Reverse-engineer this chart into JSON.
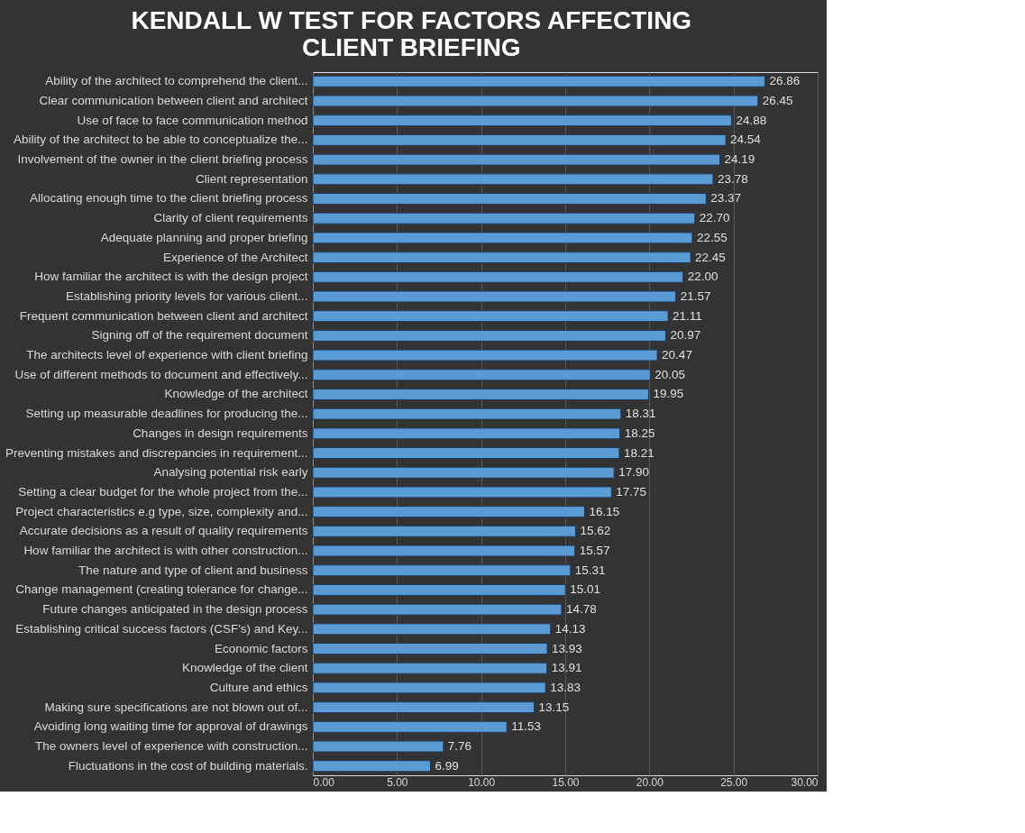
{
  "chart_data": {
    "type": "bar",
    "orientation": "horizontal",
    "title": "KENDALL W TEST FOR FACTORS AFFECTING CLIENT BRIEFING",
    "categories": [
      "Ability of the architect to comprehend the client...",
      "Clear communication between client and architect",
      "Use of face to face communication method",
      "Ability of the architect to be able to conceptualize the...",
      "Involvement of the owner in the client briefing process",
      "Client representation",
      "Allocating enough time to the client briefing process",
      "Clarity of client requirements",
      "Adequate planning and proper briefing",
      "Experience of the Architect",
      "How familiar the architect is with the design project",
      "Establishing priority levels for various client...",
      "Frequent communication between client and architect",
      "Signing off of the requirement document",
      "The architects level of experience with client briefing",
      "Use of different methods to document and effectively...",
      "Knowledge of the architect",
      "Setting up measurable deadlines for producing the...",
      "Changes in design requirements",
      "Preventing mistakes and discrepancies in requirement...",
      "Analysing potential risk early",
      "Setting a clear budget for the whole project from the...",
      "Project characteristics e.g type, size, complexity and...",
      "Accurate decisions as a result of quality requirements",
      "How familiar the architect is with other construction...",
      "The nature and type of client and business",
      "Change management (creating tolerance for change...",
      "Future changes anticipated in the design process",
      "Establishing critical success factors (CSF's) and Key...",
      "Economic factors",
      "Knowledge of the client",
      "Culture and ethics",
      "Making sure specifications are not blown out of...",
      "Avoiding long waiting time for approval of drawings",
      "The owners level of experience with construction...",
      "Fluctuations in the cost of building materials."
    ],
    "values": [
      26.86,
      26.45,
      24.88,
      24.54,
      24.19,
      23.78,
      23.37,
      22.7,
      22.55,
      22.45,
      22.0,
      21.57,
      21.11,
      20.97,
      20.47,
      20.05,
      19.95,
      18.31,
      18.25,
      18.21,
      17.9,
      17.75,
      16.15,
      15.62,
      15.57,
      15.31,
      15.01,
      14.78,
      14.13,
      13.93,
      13.91,
      13.83,
      13.15,
      11.53,
      7.76,
      6.99
    ],
    "value_labels": [
      "26.86",
      "26.45",
      "24.88",
      "24.54",
      "24.19",
      "23.78",
      "23.37",
      "22.70",
      "22.55",
      "22.45",
      "22.00",
      "21.57",
      "21.11",
      "20.97",
      "20.47",
      "20.05",
      "19.95",
      "18.31",
      "18.25",
      "18.21",
      "17.90",
      "17.75",
      "16.15",
      "15.62",
      "15.57",
      "15.31",
      "15.01",
      "14.78",
      "14.13",
      "13.93",
      "13.91",
      "13.83",
      "13.15",
      "11.53",
      "7.76",
      "6.99"
    ],
    "color": "#5b9bd5",
    "xlim": [
      0,
      30
    ],
    "xticks": [
      {
        "value": 0,
        "label": "0.00"
      },
      {
        "value": 5,
        "label": "5.00"
      },
      {
        "value": 10,
        "label": "10.00"
      },
      {
        "value": 15,
        "label": "15.00"
      },
      {
        "value": 20,
        "label": "20.00"
      },
      {
        "value": 25,
        "label": "25.00"
      },
      {
        "value": 30,
        "label": "30.00"
      }
    ],
    "grid": "x"
  }
}
